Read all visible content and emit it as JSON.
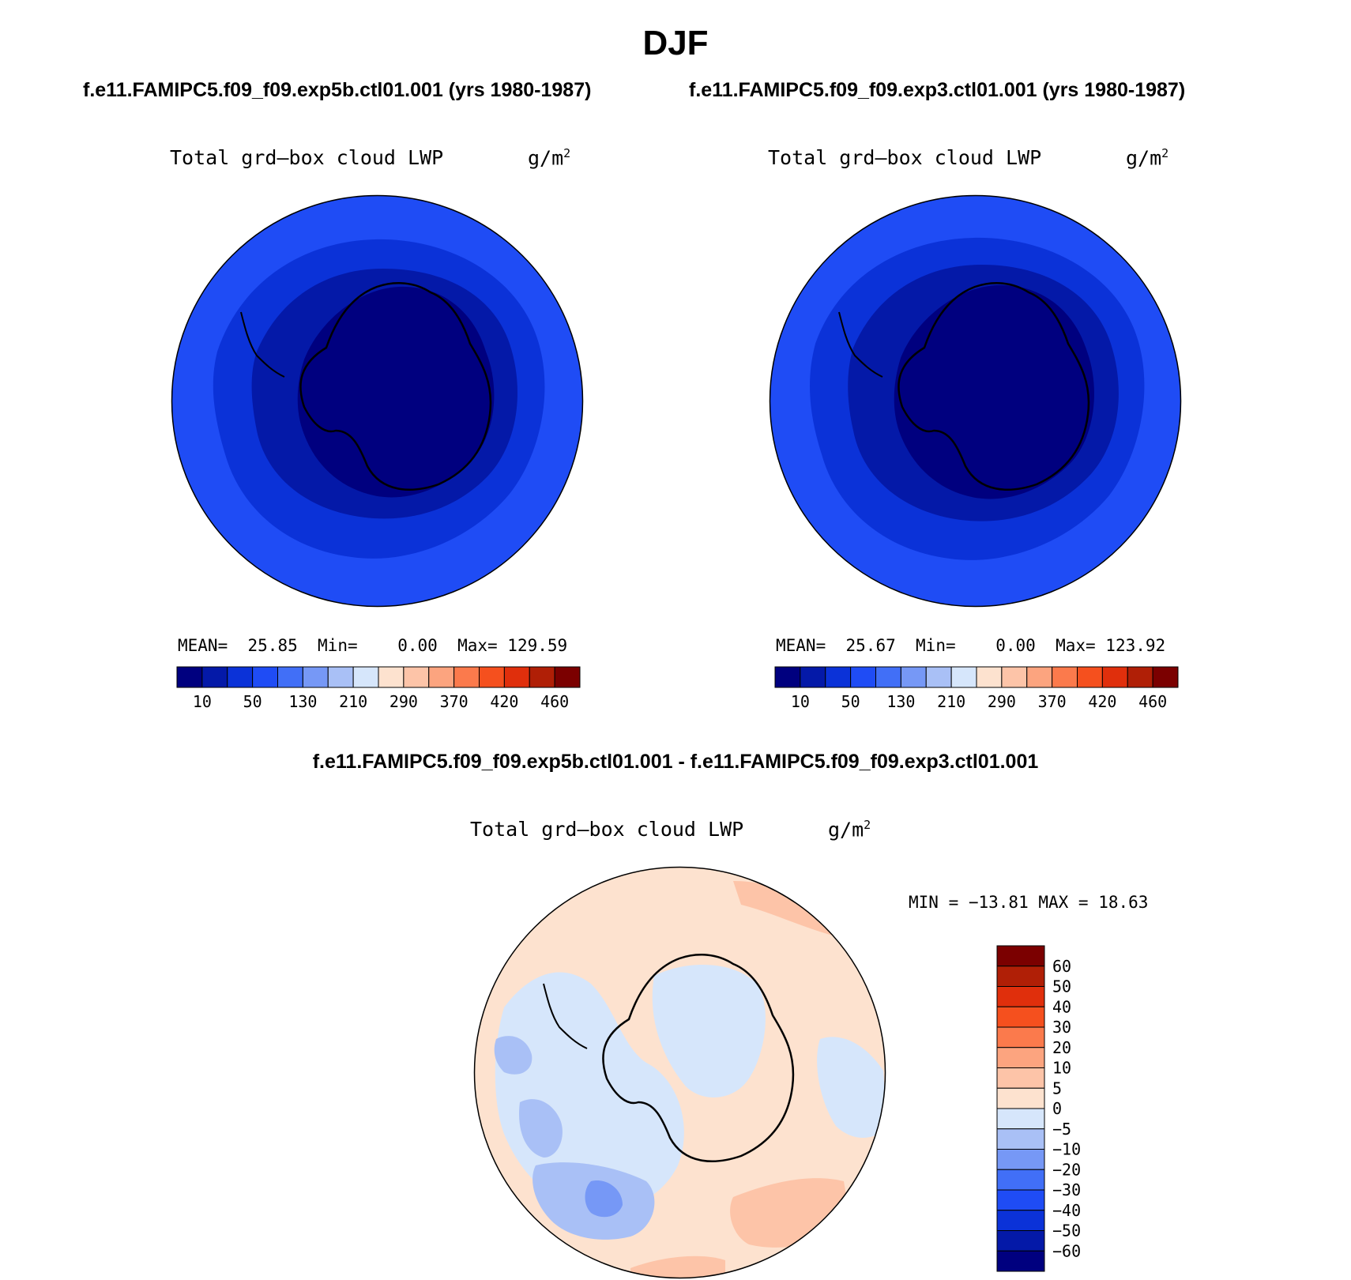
{
  "title": "DJF",
  "left_case": "f.e11.FAMIPC5.f09_f09.exp5b.ctl01.001 (yrs 1980-1987)",
  "right_case": "f.e11.FAMIPC5.f09_f09.exp3.ctl01.001 (yrs 1980-1987)",
  "diff_title": "f.e11.FAMIPC5.f09_f09.exp5b.ctl01.001 - f.e11.FAMIPC5.f09_f09.exp3.ctl01.001",
  "variable": "Total grd—box cloud LWP",
  "units": "g/m",
  "units_sup": "2",
  "left_stats": {
    "mean_label": "MEAN=",
    "mean": "25.85",
    "min_label": "Min=",
    "min": "0.00",
    "max_label": "Max=",
    "max": "129.59"
  },
  "right_stats": {
    "mean_label": "MEAN=",
    "mean": "25.67",
    "min_label": "Min=",
    "min": "0.00",
    "max_label": "Max=",
    "max": "123.92"
  },
  "diff_stats": "MIN = −13.81 MAX =   18.63",
  "colorbar_abs": {
    "colors": [
      "#00007f",
      "#0419a8",
      "#0b32d8",
      "#1f4cf5",
      "#416ff7",
      "#7698f6",
      "#a9c0f6",
      "#d6e6fb",
      "#fde2cf",
      "#fdc4a8",
      "#fca47f",
      "#fb7a4c",
      "#f5501e",
      "#e02f0c",
      "#b01f06",
      "#7b0000"
    ],
    "labels": [
      "10",
      "50",
      "130",
      "210",
      "290",
      "370",
      "420",
      "460"
    ]
  },
  "colorbar_diff": {
    "colors": [
      "#7b0000",
      "#b01f06",
      "#e02f0c",
      "#f5501e",
      "#fb7a4c",
      "#fca47f",
      "#fdc4a8",
      "#fde2cf",
      "#d6e6fb",
      "#a9c0f6",
      "#7698f6",
      "#416ff7",
      "#1f4cf5",
      "#0b32d8",
      "#0419a8",
      "#00007f"
    ],
    "labels": [
      "60",
      "50",
      "40",
      "30",
      "20",
      "10",
      "5",
      "0",
      "−5",
      "−10",
      "−20",
      "−30",
      "−40",
      "−50",
      "−60"
    ]
  },
  "map_colors": {
    "outer": "#1f4cf5",
    "mid": "#0b32d8",
    "inner": "#0419a8",
    "core": "#00007f",
    "diff_pos": "#fde2cf",
    "diff_pos2": "#fdc4a8",
    "diff_neg": "#d6e6fb",
    "diff_neg2": "#a9c0f6",
    "diff_neg3": "#7698f6"
  }
}
